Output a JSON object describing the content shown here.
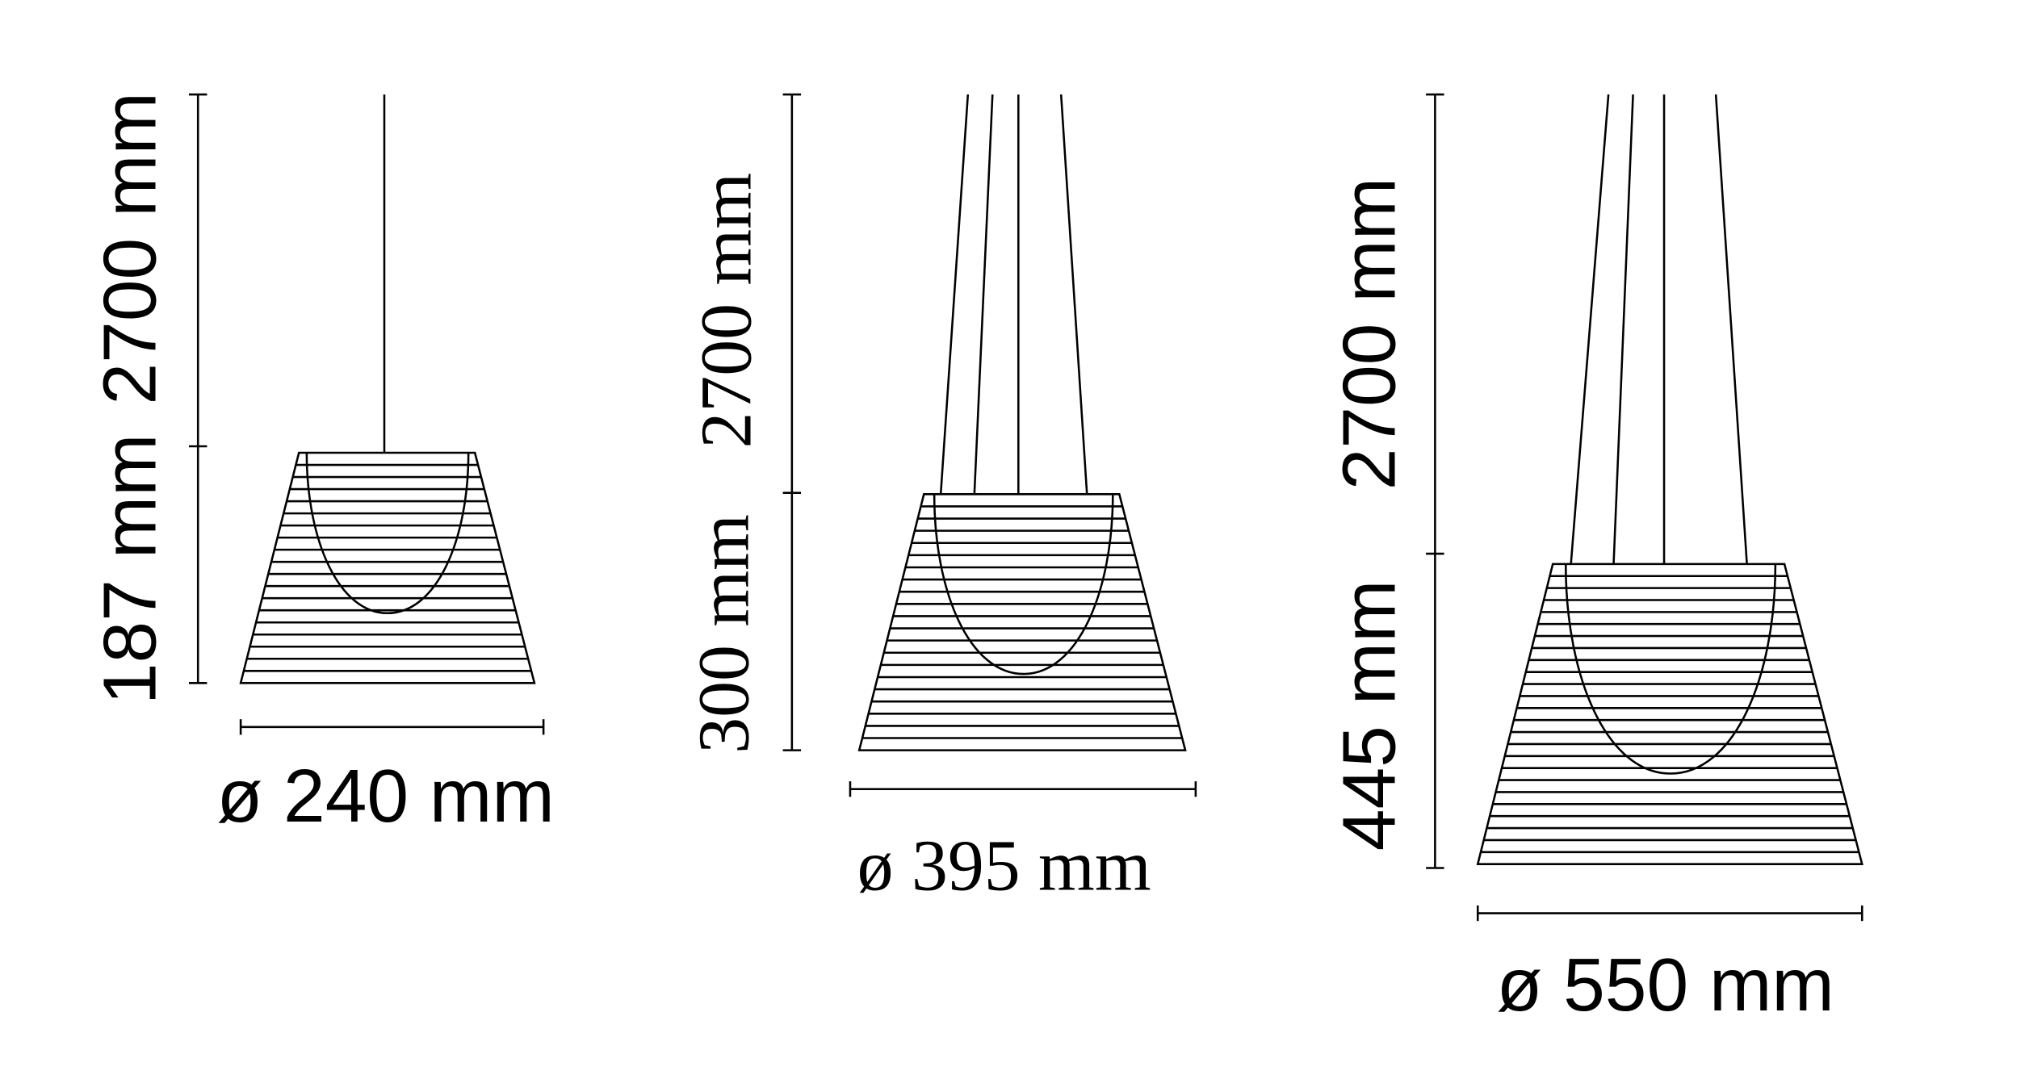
{
  "lamps": [
    {
      "cable_length": "2700 mm",
      "height": "187 mm",
      "diameter": "ø 240 mm"
    },
    {
      "cable_length": "2700 mm",
      "height": "300 mm",
      "diameter": "ø 395 mm"
    },
    {
      "cable_length": "2700 mm",
      "height": "445 mm",
      "diameter": "ø 550 mm"
    }
  ],
  "line_color": "#000000",
  "background_color": "#ffffff"
}
